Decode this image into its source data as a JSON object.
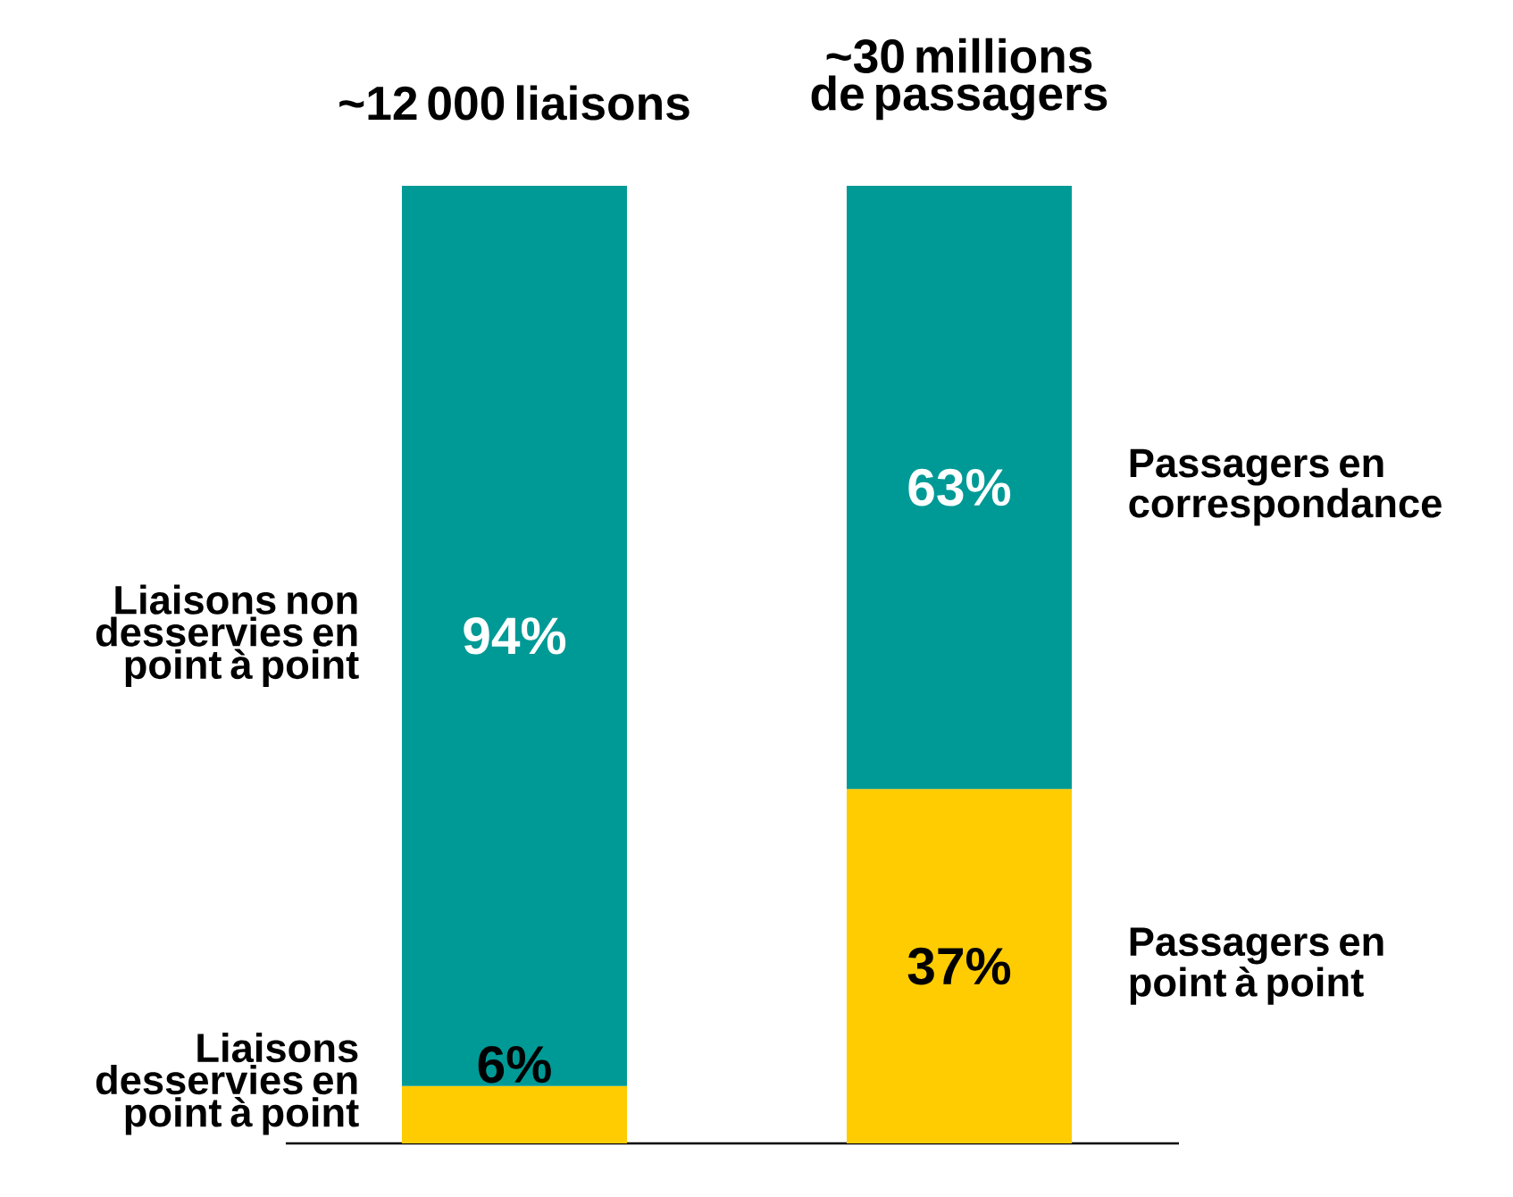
{
  "chart_data": {
    "type": "bar",
    "stacked": true,
    "categories": [
      "~12 000 liaisons",
      "~30 millions de passagers"
    ],
    "series": [
      {
        "color": "#fecc00",
        "values": [
          6,
          37
        ],
        "value_labels": [
          "6%",
          "37%"
        ]
      },
      {
        "color": "#009a96",
        "values": [
          94,
          63
        ],
        "value_labels": [
          "94%",
          "63%"
        ]
      }
    ],
    "annotations": [
      "Liaisons non desservies en point à point",
      "Liaisons desservies en point à point",
      "Passagers en correspondance",
      "Passagers en point à point"
    ]
  }
}
